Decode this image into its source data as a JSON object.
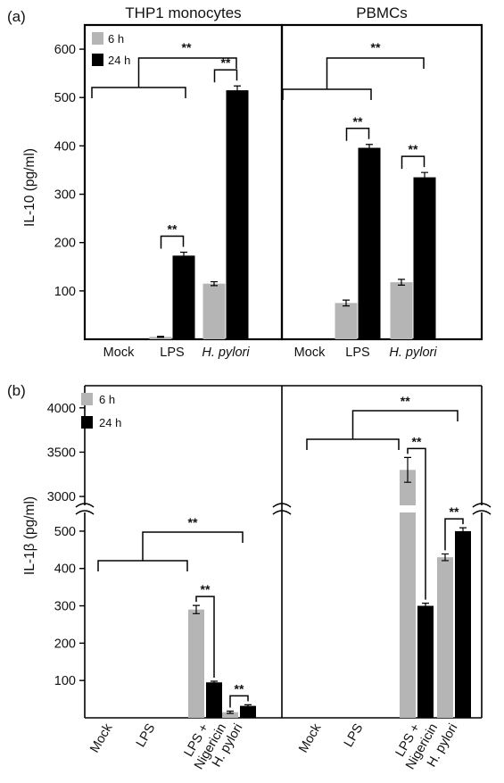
{
  "colors": {
    "h6": "#b5b5b5",
    "h24": "#000000"
  },
  "chart_data": [
    {
      "panel": "(a)",
      "type": "bar",
      "ylabel": "IL-10 (pg/ml)",
      "ylim": [
        0,
        650
      ],
      "yticks": [
        100,
        200,
        300,
        400,
        500,
        600
      ],
      "legend": {
        "labels": [
          "6 h",
          "24 h"
        ],
        "position": "top-left"
      },
      "subplots": [
        {
          "title": "THP1 monocytes",
          "categories": [
            "Mock",
            "LPS",
            "H. pylori"
          ],
          "series": [
            {
              "name": "6 h",
              "values": [
                0,
                5,
                115
              ],
              "errors": [
                0,
                1,
                4
              ]
            },
            {
              "name": "24 h",
              "values": [
                0,
                173,
                515
              ],
              "errors": [
                0,
                7,
                9
              ]
            }
          ],
          "significance": [
            {
              "type": "pair",
              "category": 1,
              "label": "**"
            },
            {
              "type": "pair",
              "category": 2,
              "label": "**"
            },
            {
              "type": "group",
              "left": [
                0,
                1
              ],
              "right": 2,
              "label": "**"
            }
          ]
        },
        {
          "title": "PBMCs",
          "categories": [
            "Mock",
            "LPS",
            "H. pylori"
          ],
          "series": [
            {
              "name": "6 h",
              "values": [
                0,
                75,
                118
              ],
              "errors": [
                0,
                6,
                6
              ]
            },
            {
              "name": "24 h",
              "values": [
                0,
                396,
                335
              ],
              "errors": [
                0,
                7,
                10
              ]
            }
          ],
          "significance": [
            {
              "type": "pair",
              "category": 1,
              "label": "**"
            },
            {
              "type": "pair",
              "category": 2,
              "label": "**"
            },
            {
              "type": "group",
              "left": [
                0,
                1
              ],
              "right": 2,
              "label": "**"
            }
          ]
        }
      ]
    },
    {
      "panel": "(b)",
      "type": "bar",
      "ylabel": "IL-1β (pg/ml)",
      "axis_break": {
        "lower": [
          0,
          550
        ],
        "upper": [
          2900,
          4250
        ]
      },
      "yticks_lower": [
        100,
        200,
        300,
        400,
        500
      ],
      "yticks_upper": [
        3000,
        3500,
        4000
      ],
      "legend": {
        "labels": [
          "6 h",
          "24 h"
        ],
        "position": "top-left"
      },
      "subplots": [
        {
          "title": "",
          "categories": [
            "Mock",
            "LPS",
            "LPS + Nigericin",
            "H. pylori"
          ],
          "series": [
            {
              "name": "6 h",
              "values": [
                0,
                0,
                290,
                15
              ],
              "errors": [
                0,
                0,
                11,
                3
              ]
            },
            {
              "name": "24 h",
              "values": [
                0,
                0,
                95,
                32
              ],
              "errors": [
                0,
                0,
                3,
                3
              ]
            }
          ],
          "significance": [
            {
              "type": "pair",
              "category": 2,
              "label": "**"
            },
            {
              "type": "pair",
              "category": 3,
              "label": "**"
            },
            {
              "type": "group",
              "left": [
                0,
                2
              ],
              "right": 3,
              "label": "**"
            }
          ]
        },
        {
          "title": "",
          "categories": [
            "Mock",
            "LPS",
            "LPS + Nigericin",
            "H. pylori"
          ],
          "series": [
            {
              "name": "6 h",
              "values": [
                0,
                0,
                3300,
                430
              ],
              "errors": [
                0,
                0,
                140,
                9
              ]
            },
            {
              "name": "24 h",
              "values": [
                0,
                0,
                300,
                500
              ],
              "errors": [
                0,
                0,
                7,
                9
              ]
            }
          ],
          "significance": [
            {
              "type": "pair",
              "category": 2,
              "label": "**"
            },
            {
              "type": "pair",
              "category": 3,
              "label": "**"
            },
            {
              "type": "group",
              "left": [
                0,
                2
              ],
              "right": 3,
              "label": "**"
            }
          ]
        }
      ]
    }
  ]
}
